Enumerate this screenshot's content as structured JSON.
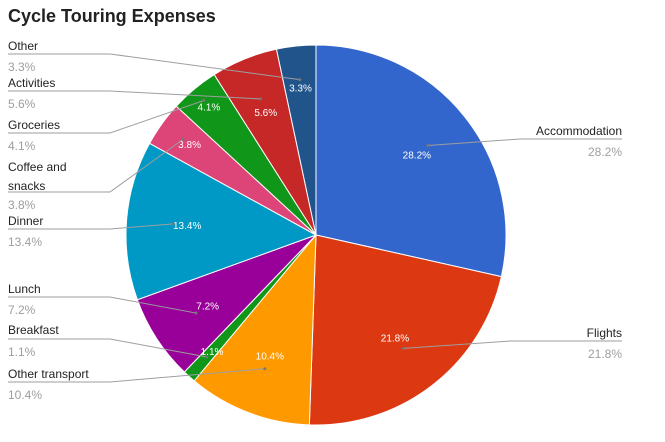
{
  "chart_data": {
    "type": "pie",
    "title": "Cycle Touring Expenses",
    "slices": [
      {
        "label": "Accommodation",
        "value": 28.2,
        "display": "28.2%",
        "color": "#3366cc"
      },
      {
        "label": "Flights",
        "value": 21.8,
        "display": "21.8%",
        "color": "#dc3912"
      },
      {
        "label": "Other transport",
        "value": 10.4,
        "display": "10.4%",
        "color": "#ff9900"
      },
      {
        "label": "Breakfast",
        "value": 1.1,
        "display": "1.1%",
        "color": "#109618"
      },
      {
        "label": "Lunch",
        "value": 7.2,
        "display": "7.2%",
        "color": "#990099"
      },
      {
        "label": "Dinner",
        "value": 13.4,
        "display": "13.4%",
        "color": "#0099c6"
      },
      {
        "label": "Coffee and snacks",
        "value": 3.8,
        "display": "3.8%",
        "color": "#dd4477"
      },
      {
        "label": "Groceries",
        "value": 4.1,
        "display": "4.1%",
        "color": "#66aa00"
      },
      {
        "label": "Activities",
        "value": 5.6,
        "display": "5.6%",
        "color": "#b82e2e"
      },
      {
        "label": "Other",
        "value": 3.3,
        "display": "3.3%",
        "color": "#994499"
      }
    ],
    "legend": "labels with leader lines"
  }
}
